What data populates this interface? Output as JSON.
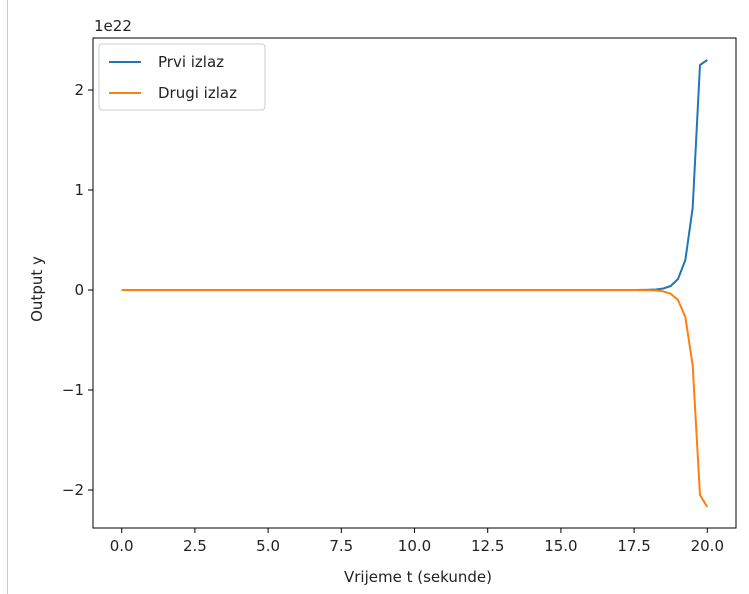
{
  "chart_data": {
    "type": "line",
    "title": "",
    "xlabel": "Vrijeme t (sekunde)",
    "ylabel": "Output y",
    "y_offset_text": "1e22",
    "xlim": [
      -0.98,
      20.98
    ],
    "ylim": [
      -2.38,
      2.52
    ],
    "x_ticks": [
      0.0,
      2.5,
      5.0,
      7.5,
      10.0,
      12.5,
      15.0,
      17.5,
      20.0
    ],
    "x_tick_labels": [
      "0.0",
      "2.5",
      "5.0",
      "7.5",
      "10.0",
      "12.5",
      "15.0",
      "17.5",
      "20.0"
    ],
    "y_ticks": [
      -2,
      -1,
      0,
      1,
      2
    ],
    "y_tick_labels": [
      "−2",
      "−1",
      "0",
      "1",
      "2"
    ],
    "grid": false,
    "legend_position": "top-left",
    "series": [
      {
        "name": "Prvi izlaz",
        "color": "#1f77b4",
        "x": [
          0,
          2,
          4,
          6,
          8,
          10,
          12,
          14,
          16,
          17,
          17.5,
          18,
          18.25,
          18.5,
          18.75,
          19,
          19.25,
          19.5,
          19.75,
          20
        ],
        "y": [
          0,
          0,
          0,
          0,
          0,
          0,
          0,
          0,
          0,
          0,
          0,
          0.002,
          0.0055,
          0.015,
          0.04,
          0.11,
          0.3,
          0.82,
          2.25,
          2.3
        ]
      },
      {
        "name": "Drugi izlaz",
        "color": "#ff7f0e",
        "x": [
          0,
          2,
          4,
          6,
          8,
          10,
          12,
          14,
          16,
          17,
          17.5,
          18,
          18.25,
          18.5,
          18.75,
          19,
          19.25,
          19.5,
          19.75,
          20
        ],
        "y": [
          0,
          0,
          0,
          0,
          0,
          0,
          0,
          0,
          0,
          0,
          0,
          -0.002,
          -0.005,
          -0.014,
          -0.037,
          -0.1,
          -0.27,
          -0.75,
          -2.05,
          -2.17
        ]
      }
    ]
  }
}
